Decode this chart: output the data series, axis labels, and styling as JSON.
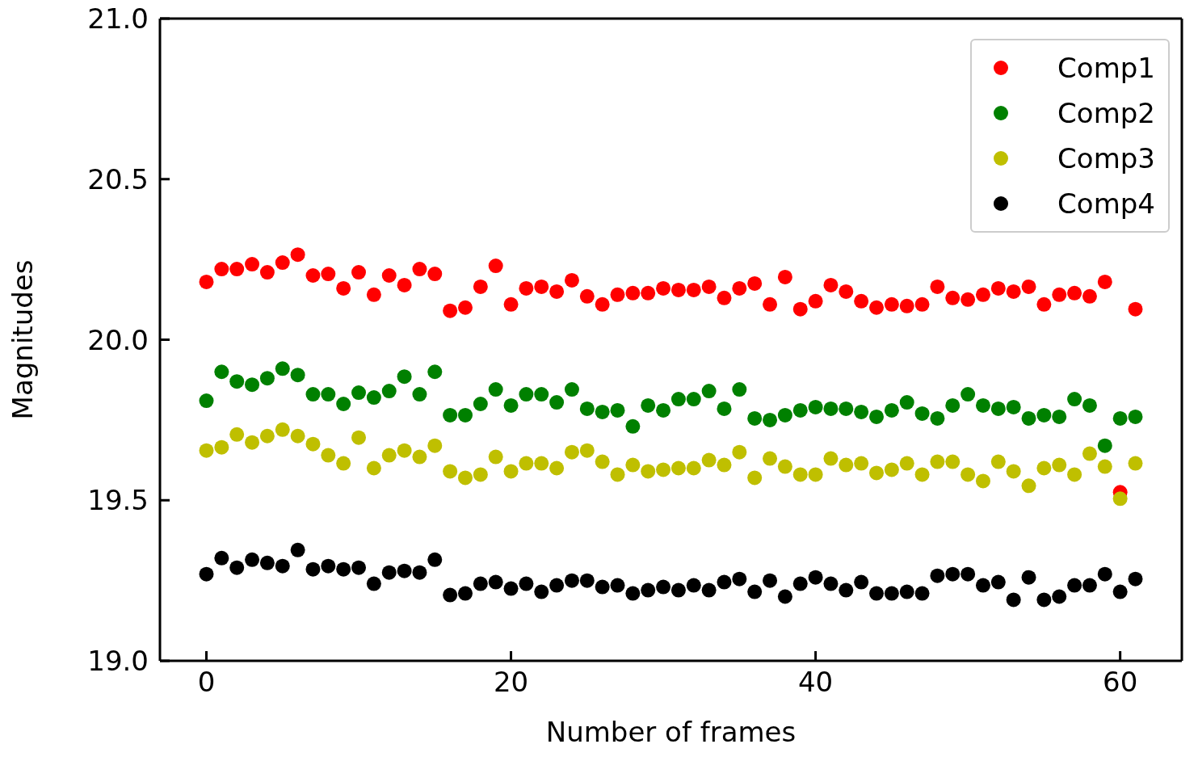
{
  "chart_data": {
    "type": "scatter",
    "xlabel": "Number of frames",
    "ylabel": "Magnitudes",
    "x": [
      0,
      1,
      2,
      3,
      4,
      5,
      6,
      7,
      8,
      9,
      10,
      11,
      12,
      13,
      14,
      15,
      16,
      17,
      18,
      19,
      20,
      21,
      22,
      23,
      24,
      25,
      26,
      27,
      28,
      29,
      30,
      31,
      32,
      33,
      34,
      35,
      36,
      37,
      38,
      39,
      40,
      41,
      42,
      43,
      44,
      45,
      46,
      47,
      48,
      49,
      50,
      51,
      52,
      53,
      54,
      55,
      56,
      57,
      58,
      59,
      60,
      61
    ],
    "series": [
      {
        "name": "Comp1",
        "color": "#ff0000",
        "values": [
          20.18,
          20.22,
          20.22,
          20.235,
          20.21,
          20.24,
          20.265,
          20.2,
          20.205,
          20.16,
          20.21,
          20.14,
          20.2,
          20.17,
          20.22,
          20.205,
          20.09,
          20.1,
          20.165,
          20.23,
          20.11,
          20.16,
          20.165,
          20.15,
          20.185,
          20.135,
          20.11,
          20.14,
          20.145,
          20.145,
          20.16,
          20.155,
          20.155,
          20.165,
          20.13,
          20.16,
          20.175,
          20.11,
          20.195,
          20.095,
          20.12,
          20.17,
          20.15,
          20.12,
          20.1,
          20.11,
          20.105,
          20.11,
          20.165,
          20.13,
          20.125,
          20.14,
          20.16,
          20.15,
          20.165,
          20.11,
          20.14,
          20.145,
          20.135,
          20.18,
          19.525,
          20.095
        ]
      },
      {
        "name": "Comp2",
        "color": "#008000",
        "values": [
          19.81,
          19.9,
          19.87,
          19.86,
          19.88,
          19.91,
          19.89,
          19.83,
          19.83,
          19.8,
          19.835,
          19.82,
          19.84,
          19.885,
          19.83,
          19.9,
          19.765,
          19.765,
          19.8,
          19.845,
          19.795,
          19.83,
          19.83,
          19.805,
          19.845,
          19.785,
          19.775,
          19.78,
          19.73,
          19.795,
          19.78,
          19.815,
          19.815,
          19.84,
          19.785,
          19.845,
          19.755,
          19.75,
          19.765,
          19.78,
          19.79,
          19.785,
          19.785,
          19.775,
          19.76,
          19.78,
          19.805,
          19.77,
          19.755,
          19.795,
          19.83,
          19.795,
          19.785,
          19.79,
          19.755,
          19.765,
          19.76,
          19.815,
          19.795,
          19.67,
          19.755,
          19.76
        ]
      },
      {
        "name": "Comp3",
        "color": "#bfbf00",
        "values": [
          19.655,
          19.665,
          19.705,
          19.68,
          19.7,
          19.72,
          19.7,
          19.675,
          19.64,
          19.615,
          19.695,
          19.6,
          19.64,
          19.655,
          19.635,
          19.67,
          19.59,
          19.57,
          19.58,
          19.635,
          19.59,
          19.615,
          19.615,
          19.6,
          19.65,
          19.655,
          19.62,
          19.58,
          19.61,
          19.59,
          19.595,
          19.6,
          19.6,
          19.625,
          19.61,
          19.65,
          19.57,
          19.63,
          19.605,
          19.58,
          19.58,
          19.63,
          19.61,
          19.615,
          19.585,
          19.595,
          19.615,
          19.58,
          19.62,
          19.62,
          19.58,
          19.56,
          19.62,
          19.59,
          19.545,
          19.6,
          19.61,
          19.58,
          19.645,
          19.605,
          19.505,
          19.615
        ]
      },
      {
        "name": "Comp4",
        "color": "#000000",
        "values": [
          19.27,
          19.32,
          19.29,
          19.315,
          19.305,
          19.295,
          19.345,
          19.285,
          19.295,
          19.285,
          19.29,
          19.24,
          19.275,
          19.28,
          19.275,
          19.315,
          19.205,
          19.21,
          19.24,
          19.245,
          19.225,
          19.24,
          19.215,
          19.235,
          19.25,
          19.25,
          19.23,
          19.235,
          19.21,
          19.22,
          19.23,
          19.22,
          19.235,
          19.22,
          19.245,
          19.255,
          19.215,
          19.25,
          19.2,
          19.24,
          19.26,
          19.24,
          19.22,
          19.245,
          19.21,
          19.21,
          19.215,
          19.21,
          19.265,
          19.27,
          19.27,
          19.235,
          19.245,
          19.19,
          19.26,
          19.19,
          19.2,
          19.235,
          19.235,
          19.27,
          19.215,
          19.255
        ]
      }
    ],
    "xlim": [
      -3.05,
      64.05
    ],
    "ylim": [
      19,
      21
    ],
    "xticks": [
      0,
      20,
      40,
      60
    ],
    "yticks": [
      {
        "value": 19,
        "label": "19.0"
      },
      19.5,
      {
        "value": 20,
        "label": "20.0"
      },
      20.5,
      {
        "value": 21,
        "label": "21.0"
      }
    ],
    "legend": "top right",
    "marker": "circle",
    "grid": false
  }
}
